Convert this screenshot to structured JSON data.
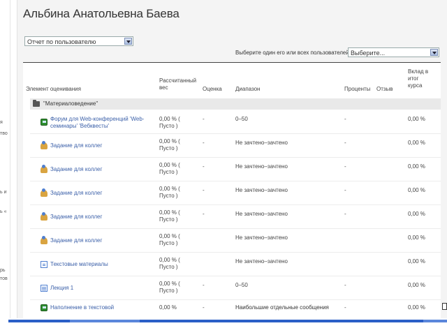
{
  "page_title": "Альбина Анатольевна Баева",
  "report_select": {
    "value": "Отчет по пользователю"
  },
  "user_select": {
    "label": "Выберите один его или всех пользователей",
    "value": "Выберите..."
  },
  "left_fragments": [
    "я",
    "тво",
    "ь и",
    "ь «",
    "рь",
    "тов"
  ],
  "columns": {
    "item": "Элемент оценивания",
    "weight": "Рассчитанный вес",
    "grade": "Оценка",
    "range": "Диапазон",
    "percent": "Проценты",
    "feedback": "Отзыв",
    "contribution": "Вклад в итог курса"
  },
  "category": {
    "label": "\"Материаловедение\""
  },
  "rows": [
    {
      "icon": "forum-icon",
      "name": "Форум для Web-конференций 'Web-семинары' 'Вебквесты'",
      "weight": "0,00 % ( Пусто )",
      "grade": "-",
      "range": "0–50",
      "percent": "-",
      "contribution": "0,00 %"
    },
    {
      "icon": "assignment-icon",
      "name": "Задание для коллег",
      "weight": "0,00 % ( Пусто )",
      "grade": "-",
      "range": "Не зачтено–зачтено",
      "percent": "-",
      "contribution": "0,00 %"
    },
    {
      "icon": "assignment-icon",
      "name": "Задание для коллег",
      "weight": "0,00 % ( Пусто )",
      "grade": "-",
      "range": "Не зачтено–зачтено",
      "percent": "-",
      "contribution": "0,00 %"
    },
    {
      "icon": "assignment-icon",
      "name": "Задание для коллег",
      "weight": "0,00 % ( Пусто )",
      "grade": "-",
      "range": "Не зачтено–зачтено",
      "percent": "-",
      "contribution": "0,00 %"
    },
    {
      "icon": "assignment-icon",
      "name": "Задание для коллег",
      "weight": "0,00 % ( Пусто )",
      "grade": "-",
      "range": "Не зачтено–зачтено",
      "percent": "-",
      "contribution": "0,00 %"
    },
    {
      "icon": "assignment-icon",
      "name": "Задание для коллег",
      "weight": "0,00 % ( Пусто )",
      "grade": "",
      "range": "Не зачтено–зачтено",
      "percent": "",
      "contribution": "0,00 %"
    },
    {
      "icon": "page-icon",
      "name": "Текстовые материалы",
      "weight": "0,00 % ( Пусто )",
      "grade": "",
      "range": "Не зачтено–зачтено",
      "percent": "",
      "contribution": "0,00 %"
    },
    {
      "icon": "lecture-icon",
      "name": "Лекция 1",
      "weight": "0,00 % ( Пусто )",
      "grade": "-",
      "range": "0–50",
      "percent": "-",
      "contribution": "0,00 %"
    },
    {
      "icon": "forum-icon",
      "name": "Наполнение в текстовой",
      "weight": "0,00 %",
      "grade": "-",
      "range": "Наибольшие отдельные сообщения",
      "percent": "-",
      "contribution": "0,00 %"
    }
  ]
}
